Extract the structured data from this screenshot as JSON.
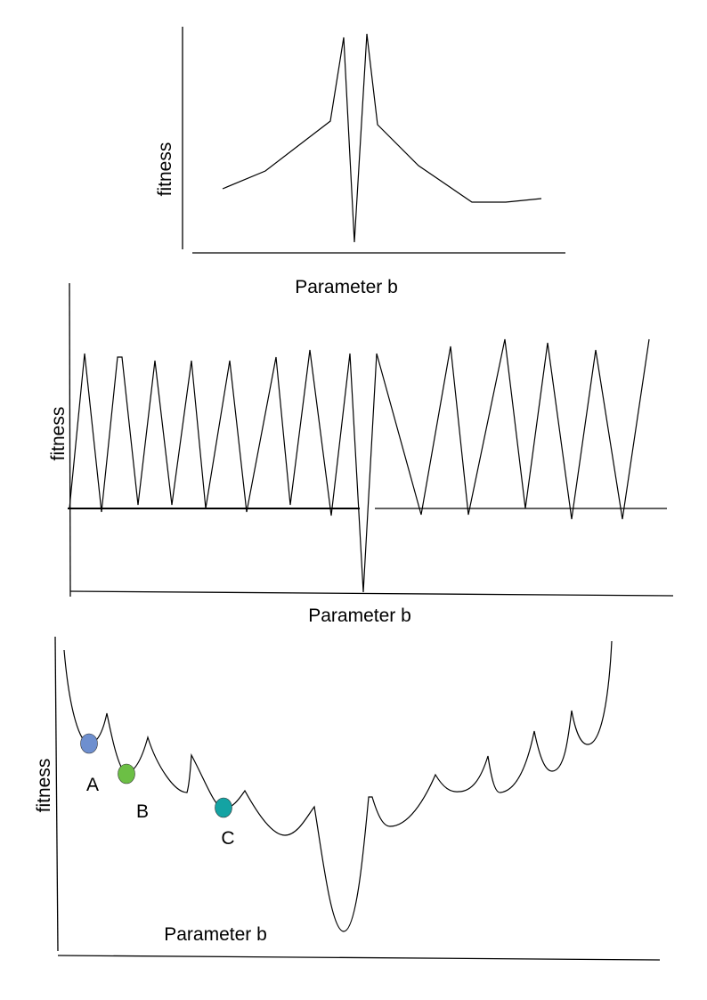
{
  "panels": [
    {
      "ylabel": "fitness",
      "xlabel": "Parameter b"
    },
    {
      "ylabel": "fitness",
      "xlabel": "Parameter b"
    },
    {
      "ylabel": "fitness",
      "xlabel": "Parameter b"
    }
  ],
  "points": [
    {
      "label": "A",
      "color": "#6e8fcf"
    },
    {
      "label": "B",
      "color": "#6cbf45"
    },
    {
      "label": "C",
      "color": "#14a3a3"
    }
  ]
}
